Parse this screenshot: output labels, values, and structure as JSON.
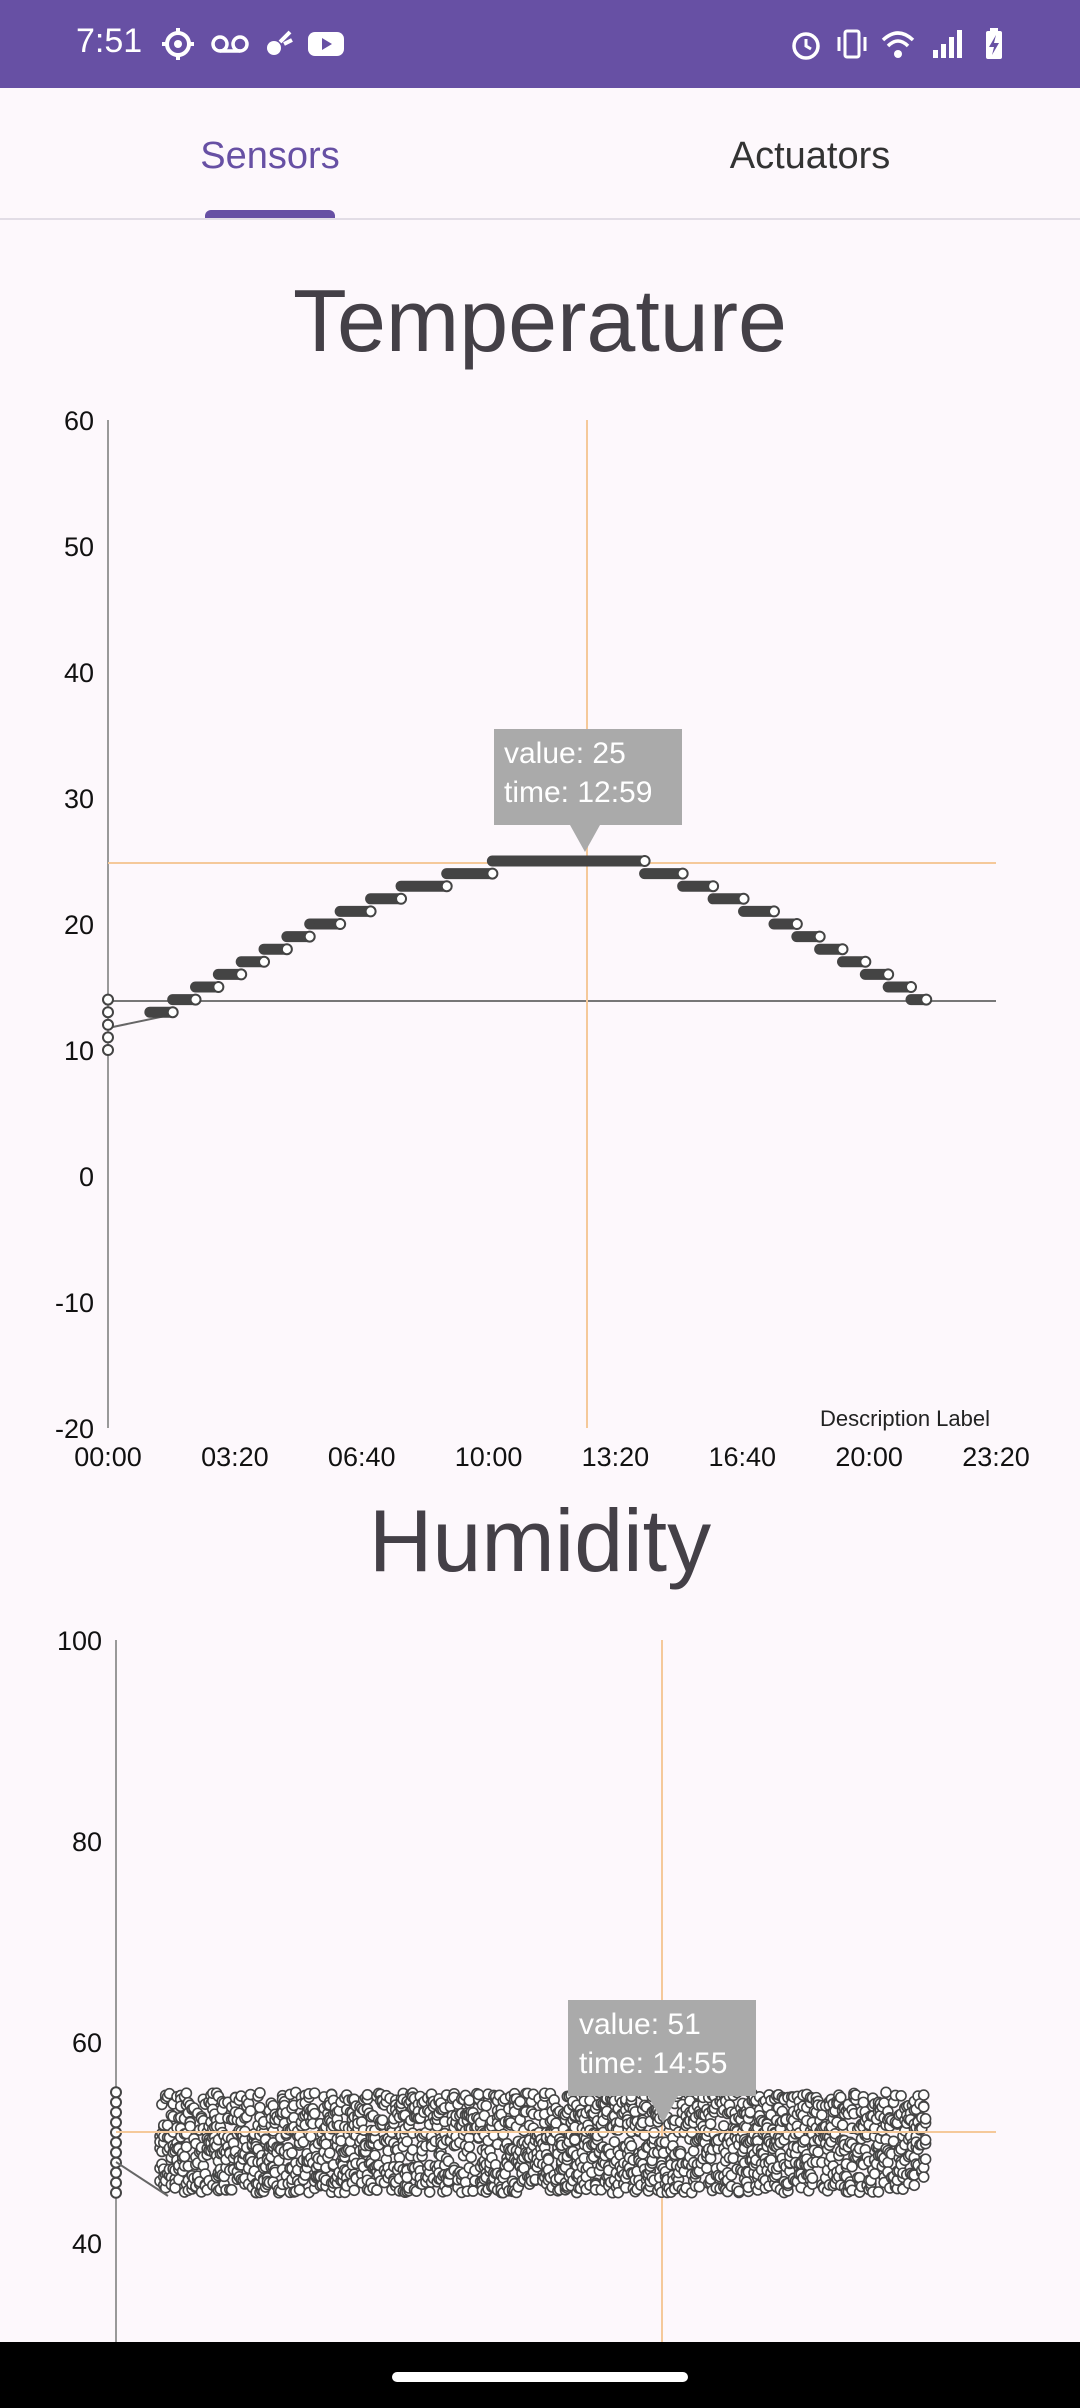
{
  "status_bar": {
    "time": "7:51",
    "left_icons": [
      "settings-icon",
      "voicemail-icon",
      "bug-icon",
      "youtube-icon"
    ],
    "right_icons": [
      "alarm-icon",
      "vibrate-icon",
      "wifi-icon",
      "signal-icon",
      "battery-charging-icon"
    ]
  },
  "tabs": [
    {
      "label": "Sensors",
      "selected": true
    },
    {
      "label": "Actuators",
      "selected": false
    }
  ],
  "colors": {
    "accent": "#6750a4",
    "crosshair": "#f5c99a",
    "line": "#444444",
    "tooltip": "#aaaaaa"
  },
  "temperature": {
    "title": "Temperature",
    "description": "Description Label",
    "tooltip": {
      "value_line": "value: 25",
      "time_line": "time: 12:59"
    }
  },
  "humidity": {
    "title": "Humidity",
    "tooltip": {
      "value_line": "value: 51",
      "time_line": "time: 14:55"
    }
  },
  "chart_data": [
    {
      "type": "line",
      "title": "Temperature",
      "x_unit": "time (HH:MM)",
      "xlim": [
        "00:00",
        "23:20"
      ],
      "ylim": [
        -20,
        60
      ],
      "x_ticks": [
        "00:00",
        "03:20",
        "06:40",
        "10:00",
        "13:20",
        "16:40",
        "20:00",
        "23:20"
      ],
      "y_ticks": [
        60,
        50,
        40,
        30,
        20,
        10,
        0,
        -10,
        -20
      ],
      "reference_line_y": 14,
      "highlight": {
        "x": "12:59",
        "y": 25
      },
      "segments": [
        {
          "from": "00:00",
          "to": "00:00",
          "value": 14
        },
        {
          "from": "00:00",
          "to": "00:00",
          "value": 13
        },
        {
          "from": "00:00",
          "to": "00:00",
          "value": 12
        },
        {
          "from": "00:00",
          "to": "00:00",
          "value": 11
        },
        {
          "from": "00:00",
          "to": "00:00",
          "value": 10
        },
        {
          "from": "01:06",
          "to": "01:42",
          "value": 13
        },
        {
          "from": "01:42",
          "to": "02:18",
          "value": 14
        },
        {
          "from": "02:18",
          "to": "02:54",
          "value": 15
        },
        {
          "from": "02:54",
          "to": "03:30",
          "value": 16
        },
        {
          "from": "03:30",
          "to": "04:06",
          "value": 17
        },
        {
          "from": "04:06",
          "to": "04:42",
          "value": 18
        },
        {
          "from": "04:42",
          "to": "05:18",
          "value": 19
        },
        {
          "from": "05:18",
          "to": "06:06",
          "value": 20
        },
        {
          "from": "06:06",
          "to": "06:54",
          "value": 21
        },
        {
          "from": "06:54",
          "to": "07:42",
          "value": 22
        },
        {
          "from": "07:42",
          "to": "08:54",
          "value": 23
        },
        {
          "from": "08:54",
          "to": "10:06",
          "value": 24
        },
        {
          "from": "10:06",
          "to": "14:06",
          "value": 25
        },
        {
          "from": "14:06",
          "to": "15:06",
          "value": 24
        },
        {
          "from": "15:06",
          "to": "15:54",
          "value": 23
        },
        {
          "from": "15:54",
          "to": "16:42",
          "value": 22
        },
        {
          "from": "16:42",
          "to": "17:30",
          "value": 21
        },
        {
          "from": "17:30",
          "to": "18:06",
          "value": 20
        },
        {
          "from": "18:06",
          "to": "18:42",
          "value": 19
        },
        {
          "from": "18:42",
          "to": "19:18",
          "value": 18
        },
        {
          "from": "19:18",
          "to": "19:54",
          "value": 17
        },
        {
          "from": "19:54",
          "to": "20:30",
          "value": 16
        },
        {
          "from": "20:30",
          "to": "21:06",
          "value": 15
        },
        {
          "from": "21:06",
          "to": "21:30",
          "value": 14
        }
      ]
    },
    {
      "type": "scatter",
      "title": "Humidity",
      "x_unit": "time (HH:MM)",
      "xlim": [
        "00:00",
        "23:20"
      ],
      "ylim": [
        30,
        100
      ],
      "y_ticks": [
        100,
        80,
        60,
        40
      ],
      "reference_line_y": 51,
      "highlight": {
        "x": "14:55",
        "y": 51
      },
      "value_range": [
        45,
        55
      ],
      "time_range": [
        "01:10",
        "21:30"
      ]
    }
  ]
}
